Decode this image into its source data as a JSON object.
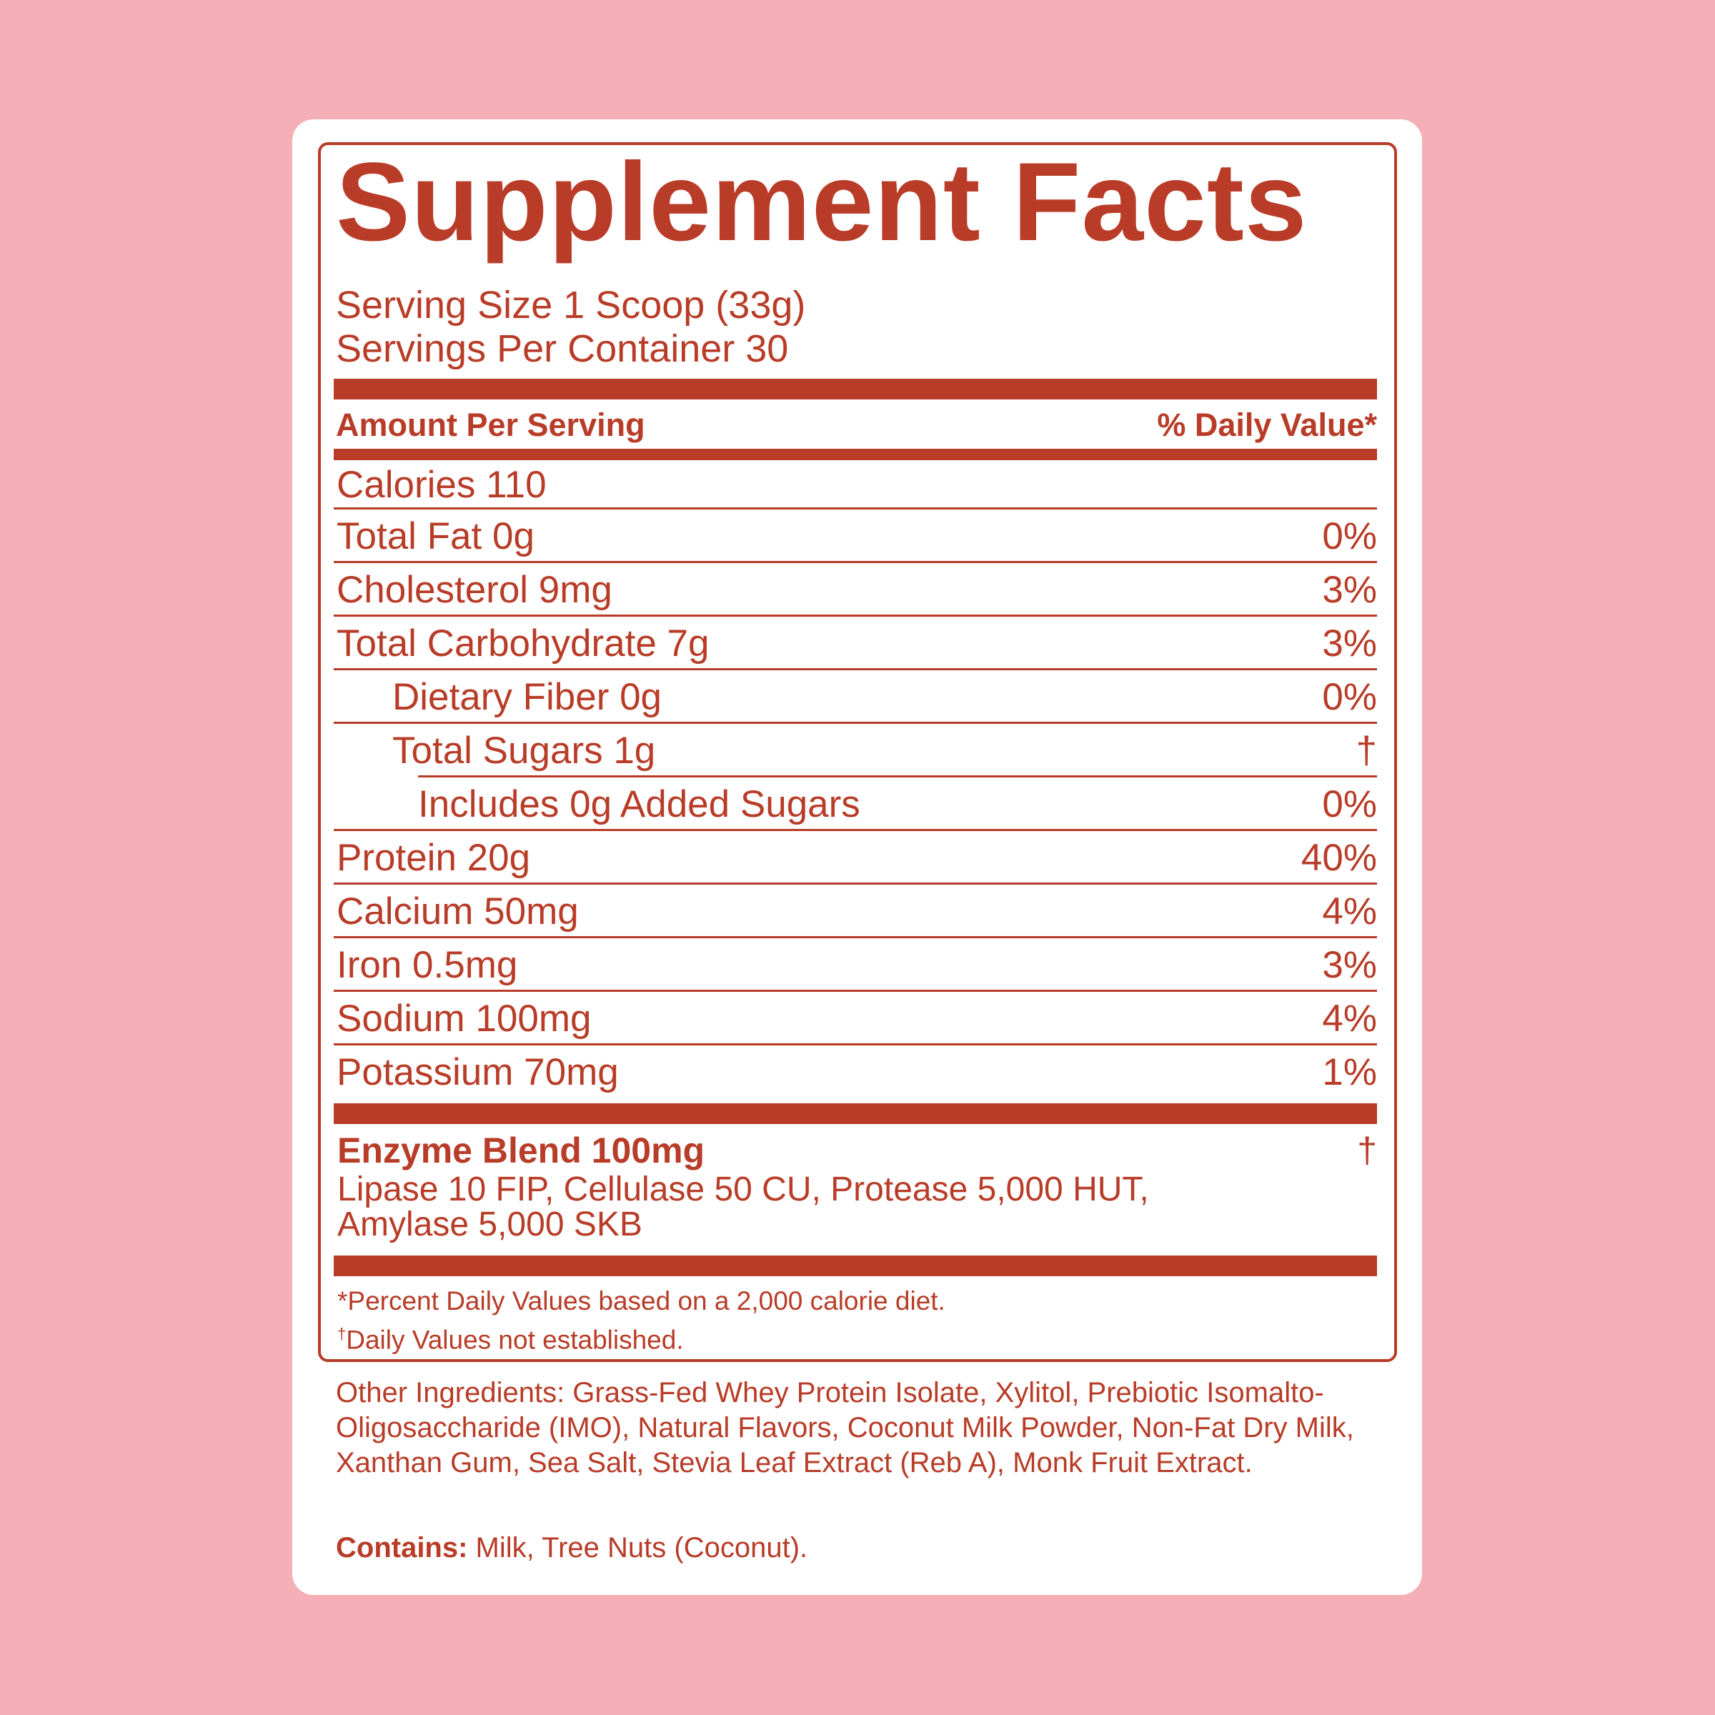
{
  "colors": {
    "background": "#F5AFB6",
    "accent": "#B83C27",
    "card": "#FFFFFF"
  },
  "label": {
    "title": "Supplement Facts",
    "serving_size": "Serving Size 1 Scoop (33g)",
    "servings_per_container": "Servings Per Container 30",
    "amount_header": "Amount Per Serving",
    "dv_header": "% Daily Value*",
    "nutrients": [
      {
        "label": "Calories 110",
        "dv": ""
      },
      {
        "label": "Total Fat 0g",
        "dv": "0%"
      },
      {
        "label": "Cholesterol 9mg",
        "dv": "3%"
      },
      {
        "label": "Total Carbohydrate 7g",
        "dv": "3%"
      },
      {
        "label": "Dietary Fiber 0g",
        "dv": "0%"
      },
      {
        "label": "Total Sugars 1g",
        "dv": "†"
      },
      {
        "label": "Includes 0g Added Sugars",
        "dv": "0%"
      },
      {
        "label": "Protein 20g",
        "dv": "40%"
      },
      {
        "label": "Calcium 50mg",
        "dv": "4%"
      },
      {
        "label": "Iron 0.5mg",
        "dv": "3%"
      },
      {
        "label": "Sodium 100mg",
        "dv": "4%"
      },
      {
        "label": "Potassium 70mg",
        "dv": "1%"
      }
    ],
    "blend": {
      "name": "Enzyme Blend 100mg",
      "dv": "†",
      "line1": "Lipase 10 FIP, Cellulase 50 CU, Protease 5,000 HUT,",
      "line2": "Amylase 5,000 SKB"
    },
    "footnote1": "*Percent Daily Values based on a 2,000 calorie diet.",
    "footnote2_mark": "†",
    "footnote2": "Daily Values not established."
  },
  "other_ingredients": "Other Ingredients: Grass-Fed Whey Protein Isolate, Xylitol, Prebiotic Isomalto-Oligosaccharide (IMO), Natural Flavors, Coconut Milk Powder, Non-Fat Dry Milk, Xanthan Gum, Sea Salt, Stevia Leaf Extract (Reb A), Monk Fruit Extract.",
  "contains": {
    "label": "Contains:",
    "value": " Milk, Tree Nuts (Coconut)."
  }
}
